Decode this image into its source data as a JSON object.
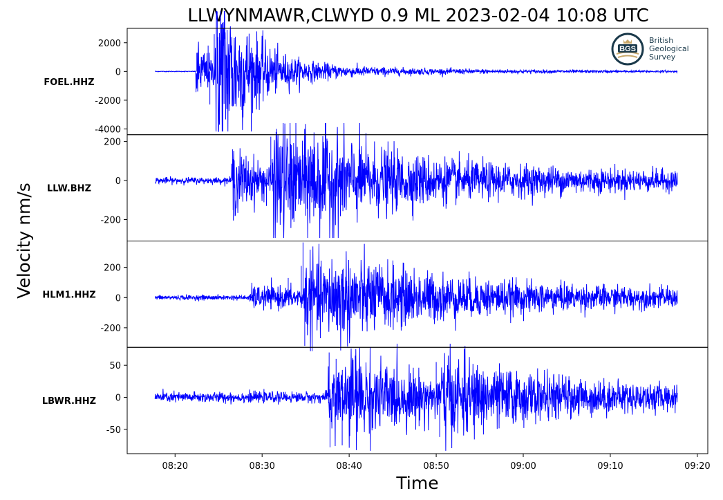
{
  "chart_data": {
    "type": "line",
    "title": "LLWYNMAWR,CLWYD 0.9 ML   2023-02-04 10:08 UTC",
    "ylabel": "Velocity nm/s",
    "xlabel": "Time",
    "series_color": "#0000ff",
    "x_ticks": [
      "08:20",
      "08:30",
      "08:40",
      "08:50",
      "09:00",
      "09:10",
      "09:20"
    ],
    "x_tick_minutes": [
      20,
      30,
      40,
      50,
      60,
      70,
      80
    ],
    "xlim_minutes": [
      14.5,
      81.2
    ],
    "data_x_range_minutes": [
      17.7,
      77.7
    ],
    "logo": {
      "name": "bgs-logo-icon",
      "mark": "BGS",
      "lines": [
        "British",
        "Geological",
        "Survey"
      ]
    },
    "panels": [
      {
        "station": "FOEL.HHZ",
        "ylim": [
          -4400,
          3000
        ],
        "yticks": [
          2000,
          0,
          -2000,
          -4000
        ],
        "ytick_labels": [
          "2000",
          "0",
          "-2000",
          "-4000"
        ],
        "baseline_noise": 15,
        "events": [
          {
            "time": 22.4,
            "amp": 1200,
            "decay": 2.5
          },
          {
            "time": 24.6,
            "amp": 4000,
            "decay": 3.5
          },
          {
            "time": 27.5,
            "amp": 300,
            "decay": 20
          }
        ],
        "peaks": [
          {
            "time": 22.5,
            "value": 1300
          },
          {
            "time": 22.6,
            "value": -1400
          },
          {
            "time": 24.5,
            "value": 2600
          },
          {
            "time": 24.7,
            "value": -4100
          },
          {
            "time": 24.9,
            "value": 2400
          },
          {
            "time": 25.1,
            "value": -3700
          },
          {
            "time": 23.8,
            "value": 1800
          },
          {
            "time": 24.0,
            "value": -2300
          }
        ]
      },
      {
        "station": "LLW.BHZ",
        "ylim": [
          -310,
          235
        ],
        "yticks": [
          200,
          0,
          -200
        ],
        "ytick_labels": [
          "200",
          "0",
          "-200"
        ],
        "baseline_noise": 9,
        "events": [
          {
            "time": 26.5,
            "amp": 90,
            "decay": 5
          },
          {
            "time": 31.2,
            "amp": 150,
            "decay": 9
          },
          {
            "time": 35.0,
            "amp": 55,
            "decay": 40
          }
        ],
        "peaks": [
          {
            "time": 26.6,
            "value": 160
          },
          {
            "time": 26.7,
            "value": -205
          },
          {
            "time": 31.0,
            "value": 225
          },
          {
            "time": 31.5,
            "value": -280
          },
          {
            "time": 31.8,
            "value": 180
          },
          {
            "time": 30.5,
            "value": -130
          },
          {
            "time": 34.7,
            "value": 130
          },
          {
            "time": 33.5,
            "value": -110
          }
        ]
      },
      {
        "station": "HLM1.HHZ",
        "ylim": [
          -330,
          375
        ],
        "yticks": [
          200,
          0,
          -200
        ],
        "ytick_labels": [
          "200",
          "0",
          "-200"
        ],
        "baseline_noise": 9,
        "events": [
          {
            "time": 28.6,
            "amp": 35,
            "decay": 30
          },
          {
            "time": 34.8,
            "amp": 130,
            "decay": 8
          },
          {
            "time": 38.0,
            "amp": 60,
            "decay": 35
          }
        ],
        "peaks": [
          {
            "time": 34.7,
            "value": 365
          },
          {
            "time": 34.9,
            "value": -320
          },
          {
            "time": 34.5,
            "value": 210
          },
          {
            "time": 35.2,
            "value": -250
          },
          {
            "time": 33.0,
            "value": 130
          },
          {
            "time": 36.5,
            "value": -150
          }
        ]
      },
      {
        "station": "LBWR.HHZ",
        "ylim": [
          -88,
          78
        ],
        "yticks": [
          50,
          0,
          -50
        ],
        "ytick_labels": [
          "50",
          "0",
          "-50"
        ],
        "baseline_noise": 4.5,
        "events": [
          {
            "time": 37.6,
            "amp": 35,
            "decay": 6
          },
          {
            "time": 40.0,
            "amp": 15,
            "decay": 30
          },
          {
            "time": 50.5,
            "amp": 20,
            "decay": 12
          }
        ],
        "peaks": [
          {
            "time": 37.7,
            "value": 70
          },
          {
            "time": 37.8,
            "value": -78
          },
          {
            "time": 38.5,
            "value": 60
          },
          {
            "time": 39.2,
            "value": -75
          },
          {
            "time": 40.7,
            "value": 65
          },
          {
            "time": 50.0,
            "value": 55
          },
          {
            "time": 50.4,
            "value": -62
          },
          {
            "time": 51.3,
            "value": 50
          }
        ]
      }
    ]
  }
}
